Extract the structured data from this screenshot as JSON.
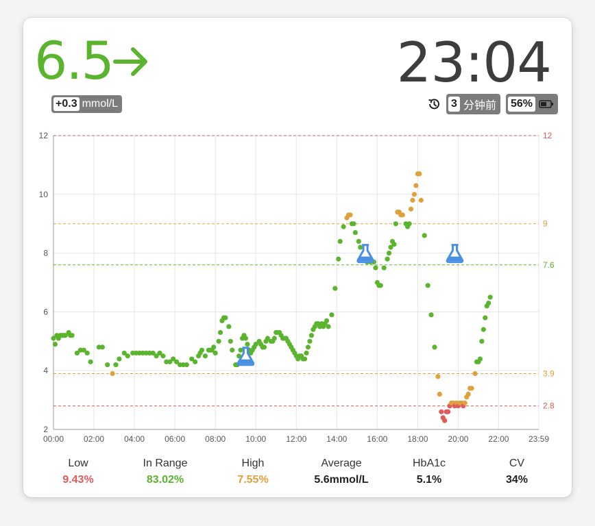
{
  "current": {
    "value": "6.5",
    "trend": "right-arrow-icon",
    "delta": "+0.3",
    "unit": "mmol/L",
    "color": "#5ab42e"
  },
  "status": {
    "time": "23:04",
    "ago_num": "3",
    "ago_label": "分钟前",
    "battery": "56%"
  },
  "colors": {
    "low": "#e05a5a",
    "in_range": "#5ab42e",
    "high": "#e0a03c",
    "line_low": "#e05a5a",
    "line_high": "#e0a03c",
    "line_target": "#5ab42e",
    "meal_marker": "#4a90e2"
  },
  "chart_data": {
    "type": "scatter",
    "xlabel": "",
    "ylabel": "",
    "x_ticks": [
      "00:00",
      "02:00",
      "04:00",
      "06:00",
      "08:00",
      "10:00",
      "12:00",
      "14:00",
      "16:00",
      "18:00",
      "20:00",
      "22:00",
      "23:59"
    ],
    "x_range_minutes": [
      0,
      1439
    ],
    "ylim": [
      2,
      12
    ],
    "y_ticks": [
      2,
      4,
      6,
      8,
      10,
      12
    ],
    "reference_lines": [
      {
        "value": 12,
        "label": "12",
        "kind": "low"
      },
      {
        "value": 9,
        "label": "9",
        "kind": "high"
      },
      {
        "value": 7.6,
        "label": "7.6",
        "kind": "target"
      },
      {
        "value": 3.9,
        "label": "3.9",
        "kind": "high"
      },
      {
        "value": 2.8,
        "label": "2.8",
        "kind": "low"
      }
    ],
    "markers": [
      {
        "time": "09:30",
        "value": 4.5,
        "icon": "flask-icon"
      },
      {
        "time": "15:25",
        "value": 8.0,
        "icon": "flask-icon"
      },
      {
        "time": "19:50",
        "value": 8.0,
        "icon": "flask-icon"
      }
    ],
    "points": [
      [
        "00:00",
        5.1
      ],
      [
        "00:05",
        4.9
      ],
      [
        "00:10",
        5.2
      ],
      [
        "00:15",
        5.1
      ],
      [
        "00:20",
        5.2
      ],
      [
        "00:25",
        5.2
      ],
      [
        "00:30",
        5.2
      ],
      [
        "00:35",
        5.2
      ],
      [
        "00:45",
        5.3
      ],
      [
        "00:50",
        5.2
      ],
      [
        "00:55",
        5.2
      ],
      [
        "01:10",
        4.6
      ],
      [
        "01:20",
        4.7
      ],
      [
        "01:30",
        4.7
      ],
      [
        "01:40",
        4.6
      ],
      [
        "01:50",
        4.3
      ],
      [
        "02:15",
        4.8
      ],
      [
        "02:25",
        4.8
      ],
      [
        "02:40",
        4.2
      ],
      [
        "02:55",
        3.9
      ],
      [
        "03:05",
        4.2
      ],
      [
        "03:15",
        4.4
      ],
      [
        "03:30",
        4.6
      ],
      [
        "03:40",
        4.5
      ],
      [
        "03:55",
        4.6
      ],
      [
        "04:05",
        4.6
      ],
      [
        "04:15",
        4.6
      ],
      [
        "04:25",
        4.6
      ],
      [
        "04:35",
        4.6
      ],
      [
        "04:45",
        4.6
      ],
      [
        "04:55",
        4.6
      ],
      [
        "05:05",
        4.5
      ],
      [
        "05:15",
        4.6
      ],
      [
        "05:25",
        4.5
      ],
      [
        "05:35",
        4.3
      ],
      [
        "05:45",
        4.3
      ],
      [
        "05:55",
        4.4
      ],
      [
        "06:05",
        4.3
      ],
      [
        "06:15",
        4.2
      ],
      [
        "06:25",
        4.2
      ],
      [
        "06:35",
        4.2
      ],
      [
        "06:50",
        4.4
      ],
      [
        "07:00",
        4.3
      ],
      [
        "07:10",
        4.5
      ],
      [
        "07:15",
        4.6
      ],
      [
        "07:20",
        4.7
      ],
      [
        "07:30",
        4.5
      ],
      [
        "07:40",
        4.7
      ],
      [
        "07:45",
        4.7
      ],
      [
        "07:50",
        4.7
      ],
      [
        "07:55",
        4.8
      ],
      [
        "08:00",
        4.6
      ],
      [
        "08:10",
        5.0
      ],
      [
        "08:15",
        5.3
      ],
      [
        "08:20",
        5.7
      ],
      [
        "08:25",
        5.8
      ],
      [
        "08:30",
        5.8
      ],
      [
        "08:40",
        5.5
      ],
      [
        "08:45",
        5.0
      ],
      [
        "08:50",
        4.7
      ],
      [
        "09:00",
        4.2
      ],
      [
        "09:05",
        4.2
      ],
      [
        "09:10",
        4.5
      ],
      [
        "09:15",
        4.7
      ],
      [
        "09:20",
        5.1
      ],
      [
        "09:25",
        5.2
      ],
      [
        "09:30",
        5.1
      ],
      [
        "09:35",
        4.9
      ],
      [
        "09:40",
        4.7
      ],
      [
        "09:45",
        4.6
      ],
      [
        "09:50",
        4.7
      ],
      [
        "09:55",
        4.8
      ],
      [
        "10:00",
        4.9
      ],
      [
        "10:10",
        5.0
      ],
      [
        "10:15",
        4.9
      ],
      [
        "10:20",
        4.8
      ],
      [
        "10:25",
        4.8
      ],
      [
        "10:30",
        5.0
      ],
      [
        "10:35",
        5.1
      ],
      [
        "10:45",
        5.0
      ],
      [
        "10:50",
        5.0
      ],
      [
        "10:55",
        5.1
      ],
      [
        "11:00",
        5.3
      ],
      [
        "11:05",
        5.3
      ],
      [
        "11:10",
        5.3
      ],
      [
        "11:15",
        5.2
      ],
      [
        "11:20",
        5.1
      ],
      [
        "11:25",
        5.1
      ],
      [
        "11:30",
        5.1
      ],
      [
        "11:35",
        5.0
      ],
      [
        "11:40",
        4.9
      ],
      [
        "11:45",
        4.8
      ],
      [
        "11:50",
        4.7
      ],
      [
        "11:55",
        4.6
      ],
      [
        "12:00",
        4.5
      ],
      [
        "12:05",
        4.4
      ],
      [
        "12:10",
        4.5
      ],
      [
        "12:15",
        4.5
      ],
      [
        "12:20",
        4.4
      ],
      [
        "12:25",
        4.4
      ],
      [
        "12:30",
        4.6
      ],
      [
        "12:35",
        4.8
      ],
      [
        "12:40",
        5.0
      ],
      [
        "12:45",
        5.2
      ],
      [
        "12:50",
        5.4
      ],
      [
        "12:55",
        5.5
      ],
      [
        "13:00",
        5.6
      ],
      [
        "13:05",
        5.6
      ],
      [
        "13:10",
        5.5
      ],
      [
        "13:15",
        5.6
      ],
      [
        "13:20",
        5.5
      ],
      [
        "13:25",
        5.6
      ],
      [
        "13:30",
        5.7
      ],
      [
        "13:35",
        5.5
      ],
      [
        "13:45",
        5.9
      ],
      [
        "13:55",
        6.8
      ],
      [
        "14:05",
        7.8
      ],
      [
        "14:10",
        8.4
      ],
      [
        "14:20",
        8.9
      ],
      [
        "14:30",
        9.2
      ],
      [
        "14:35",
        9.3
      ],
      [
        "14:40",
        9.3
      ],
      [
        "14:45",
        9.0
      ],
      [
        "14:50",
        9.0
      ],
      [
        "14:55",
        8.7
      ],
      [
        "15:05",
        8.4
      ],
      [
        "15:10",
        8.2
      ],
      [
        "15:15",
        7.9
      ],
      [
        "15:20",
        7.8
      ],
      [
        "15:30",
        7.7
      ],
      [
        "15:40",
        7.7
      ],
      [
        "15:50",
        7.7
      ],
      [
        "15:55",
        7.5
      ],
      [
        "16:00",
        7.0
      ],
      [
        "16:05",
        6.9
      ],
      [
        "16:10",
        6.9
      ],
      [
        "16:20",
        7.5
      ],
      [
        "16:30",
        7.8
      ],
      [
        "16:35",
        8.0
      ],
      [
        "16:40",
        8.2
      ],
      [
        "16:45",
        8.4
      ],
      [
        "16:50",
        8.3
      ],
      [
        "16:55",
        9.0
      ],
      [
        "17:00",
        9.4
      ],
      [
        "17:05",
        9.4
      ],
      [
        "17:10",
        9.3
      ],
      [
        "17:15",
        9.3
      ],
      [
        "17:25",
        9.0
      ],
      [
        "17:30",
        8.9
      ],
      [
        "17:35",
        9.0
      ],
      [
        "17:40",
        9.5
      ],
      [
        "17:45",
        9.8
      ],
      [
        "17:50",
        10.0
      ],
      [
        "17:55",
        10.3
      ],
      [
        "18:00",
        10.7
      ],
      [
        "18:05",
        10.7
      ],
      [
        "18:10",
        9.8
      ],
      [
        "18:20",
        8.6
      ],
      [
        "18:30",
        6.9
      ],
      [
        "18:40",
        5.9
      ],
      [
        "18:50",
        4.8
      ],
      [
        "19:00",
        3.8
      ],
      [
        "19:05",
        3.2
      ],
      [
        "19:10",
        2.6
      ],
      [
        "19:15",
        2.4
      ],
      [
        "19:20",
        2.3
      ],
      [
        "19:25",
        2.6
      ],
      [
        "19:30",
        2.6
      ],
      [
        "19:35",
        2.8
      ],
      [
        "19:40",
        2.9
      ],
      [
        "19:45",
        2.9
      ],
      [
        "19:50",
        2.8
      ],
      [
        "19:55",
        2.9
      ],
      [
        "20:00",
        2.8
      ],
      [
        "20:05",
        2.9
      ],
      [
        "20:10",
        2.9
      ],
      [
        "20:15",
        2.8
      ],
      [
        "20:20",
        2.9
      ],
      [
        "20:25",
        3.1
      ],
      [
        "20:30",
        3.2
      ],
      [
        "20:35",
        3.4
      ],
      [
        "20:40",
        3.4
      ],
      [
        "20:50",
        3.9
      ],
      [
        "20:55",
        4.3
      ],
      [
        "21:00",
        4.3
      ],
      [
        "21:05",
        4.4
      ],
      [
        "21:10",
        5.0
      ],
      [
        "21:15",
        5.4
      ],
      [
        "21:20",
        5.8
      ],
      [
        "21:25",
        6.2
      ],
      [
        "21:30",
        6.3
      ],
      [
        "21:35",
        6.5
      ]
    ]
  },
  "stats": [
    {
      "label": "Low",
      "value": "9.43%",
      "color": "#e05a5a"
    },
    {
      "label": "In Range",
      "value": "83.02%",
      "color": "#5ab42e"
    },
    {
      "label": "High",
      "value": "7.55%",
      "color": "#e0a03c"
    },
    {
      "label": "Average",
      "value": "5.6mmol/L",
      "color": "#222222"
    },
    {
      "label": "HbA1c",
      "value": "5.1%",
      "color": "#222222"
    },
    {
      "label": "CV",
      "value": "34%",
      "color": "#222222"
    }
  ]
}
